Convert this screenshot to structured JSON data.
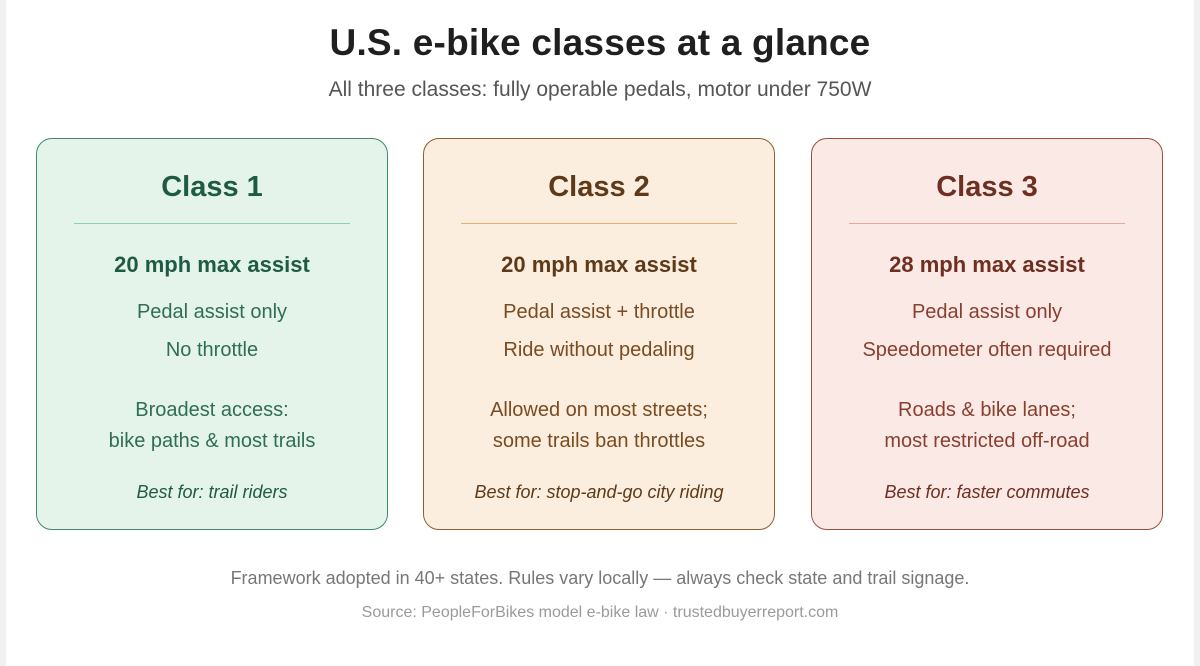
{
  "title": "U.S. e-bike classes at a glance",
  "subtitle": "All three classes: fully operable pedals, motor under 750W",
  "cards": [
    {
      "title": "Class 1",
      "speed": "20 mph max assist",
      "line1": "Pedal assist only",
      "line2": "No throttle",
      "access1": "Broadest access:",
      "access2": "bike paths & most trails",
      "best": "Best for: trail riders",
      "colors": {
        "background": "#e4f4eb",
        "border": "#3f8a6a",
        "title": "#1f5a45",
        "rule": "#8fcfb4",
        "text": "#2f6e55"
      }
    },
    {
      "title": "Class 2",
      "speed": "20 mph max assist",
      "line1": "Pedal assist + throttle",
      "line2": "Ride without pedaling",
      "access1": "Allowed on most streets;",
      "access2": "some trails ban throttles",
      "best": "Best for: stop-and-go city riding",
      "colors": {
        "background": "#fbeedf",
        "border": "#8a6030",
        "title": "#5e3a18",
        "rule": "#e8b070",
        "text": "#7a4b20"
      }
    },
    {
      "title": "Class 3",
      "speed": "28 mph max assist",
      "line1": "Pedal assist only",
      "line2": "Speedometer often required",
      "access1": "Roads & bike lanes;",
      "access2": "most restricted off-road",
      "best": "Best for: faster commutes",
      "colors": {
        "background": "#fae9e5",
        "border": "#9a5040",
        "title": "#6e2e20",
        "rule": "#e8a898",
        "text": "#8a3e2e"
      }
    }
  ],
  "footnote": "Framework adopted in 40+ states. Rules vary locally — always check state and trail signage.",
  "source": "Source: PeopleForBikes model e-bike law · trustedbuyerreport.com"
}
